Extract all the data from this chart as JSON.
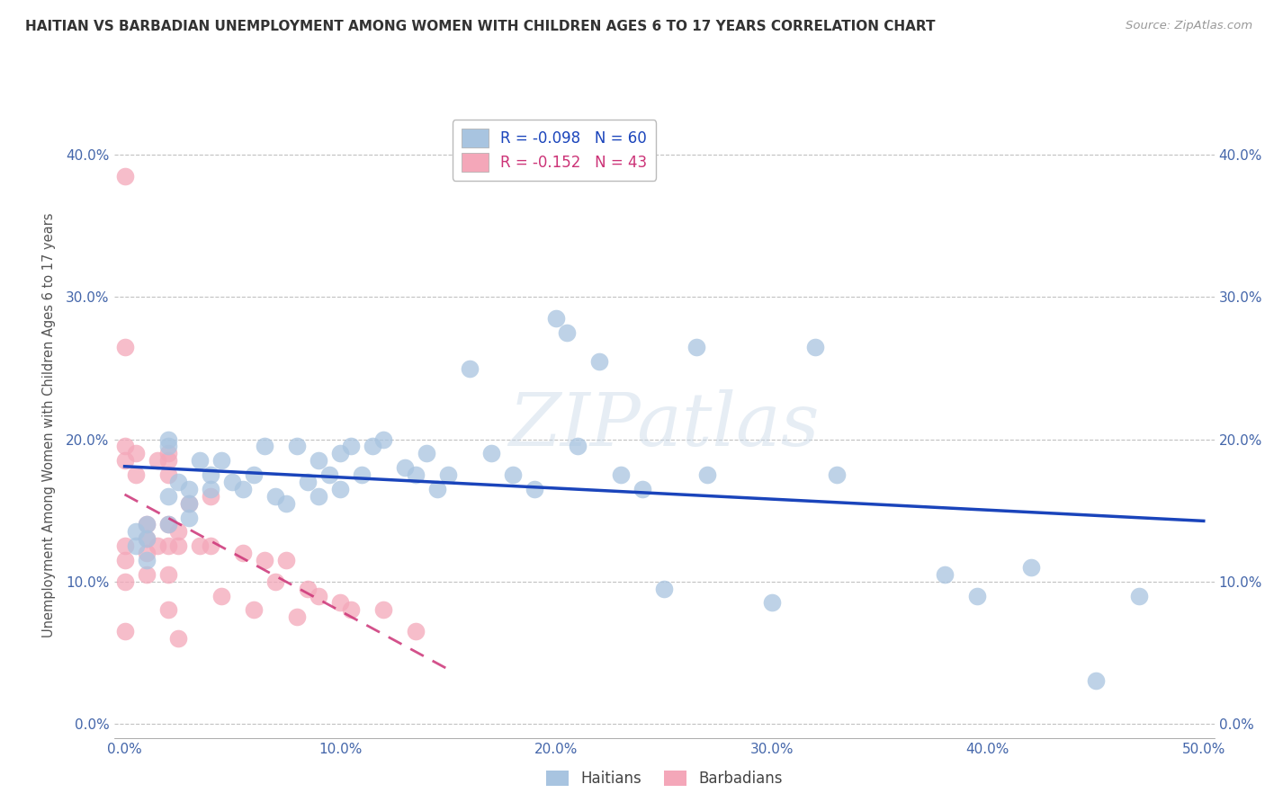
{
  "title": "HAITIAN VS BARBADIAN UNEMPLOYMENT AMONG WOMEN WITH CHILDREN AGES 6 TO 17 YEARS CORRELATION CHART",
  "source": "Source: ZipAtlas.com",
  "ylabel": "Unemployment Among Women with Children Ages 6 to 17 years",
  "xlim": [
    -0.005,
    0.505
  ],
  "ylim": [
    -0.01,
    0.43
  ],
  "x_ticks": [
    0.0,
    0.1,
    0.2,
    0.3,
    0.4,
    0.5
  ],
  "x_tick_labels": [
    "0.0%",
    "10.0%",
    "20.0%",
    "30.0%",
    "40.0%",
    "50.0%"
  ],
  "y_ticks": [
    0.0,
    0.1,
    0.2,
    0.3,
    0.4
  ],
  "y_tick_labels": [
    "0.0%",
    "10.0%",
    "20.0%",
    "30.0%",
    "40.0%"
  ],
  "haitians_R": -0.098,
  "haitians_N": 60,
  "barbadians_R": -0.152,
  "barbadians_N": 43,
  "haitians_color": "#a8c4e0",
  "barbadians_color": "#f4a7b9",
  "haitians_line_color": "#1a44bb",
  "barbadians_line_color": "#cc3377",
  "background_color": "#ffffff",
  "grid_color": "#bbbbbb",
  "watermark_text": "ZIPatlas",
  "haitians_x": [
    0.005,
    0.005,
    0.01,
    0.01,
    0.01,
    0.02,
    0.02,
    0.02,
    0.02,
    0.025,
    0.03,
    0.03,
    0.03,
    0.035,
    0.04,
    0.04,
    0.045,
    0.05,
    0.055,
    0.06,
    0.065,
    0.07,
    0.075,
    0.08,
    0.085,
    0.09,
    0.09,
    0.095,
    0.1,
    0.1,
    0.105,
    0.11,
    0.115,
    0.12,
    0.13,
    0.135,
    0.14,
    0.145,
    0.15,
    0.16,
    0.17,
    0.18,
    0.19,
    0.2,
    0.205,
    0.21,
    0.22,
    0.23,
    0.24,
    0.25,
    0.265,
    0.27,
    0.3,
    0.32,
    0.33,
    0.38,
    0.395,
    0.42,
    0.45,
    0.47
  ],
  "haitians_y": [
    0.135,
    0.125,
    0.14,
    0.13,
    0.115,
    0.2,
    0.195,
    0.16,
    0.14,
    0.17,
    0.165,
    0.155,
    0.145,
    0.185,
    0.175,
    0.165,
    0.185,
    0.17,
    0.165,
    0.175,
    0.195,
    0.16,
    0.155,
    0.195,
    0.17,
    0.185,
    0.16,
    0.175,
    0.19,
    0.165,
    0.195,
    0.175,
    0.195,
    0.2,
    0.18,
    0.175,
    0.19,
    0.165,
    0.175,
    0.25,
    0.19,
    0.175,
    0.165,
    0.285,
    0.275,
    0.195,
    0.255,
    0.175,
    0.165,
    0.095,
    0.265,
    0.175,
    0.085,
    0.265,
    0.175,
    0.105,
    0.09,
    0.11,
    0.03,
    0.09
  ],
  "barbadians_x": [
    0.0,
    0.0,
    0.0,
    0.0,
    0.0,
    0.0,
    0.0,
    0.0,
    0.005,
    0.005,
    0.01,
    0.01,
    0.01,
    0.01,
    0.015,
    0.015,
    0.02,
    0.02,
    0.02,
    0.02,
    0.02,
    0.02,
    0.02,
    0.025,
    0.025,
    0.025,
    0.03,
    0.035,
    0.04,
    0.04,
    0.045,
    0.055,
    0.06,
    0.065,
    0.07,
    0.075,
    0.08,
    0.085,
    0.09,
    0.1,
    0.105,
    0.12,
    0.135
  ],
  "barbadians_y": [
    0.385,
    0.265,
    0.195,
    0.185,
    0.125,
    0.115,
    0.1,
    0.065,
    0.19,
    0.175,
    0.14,
    0.13,
    0.12,
    0.105,
    0.185,
    0.125,
    0.19,
    0.185,
    0.175,
    0.14,
    0.125,
    0.105,
    0.08,
    0.135,
    0.125,
    0.06,
    0.155,
    0.125,
    0.16,
    0.125,
    0.09,
    0.12,
    0.08,
    0.115,
    0.1,
    0.115,
    0.075,
    0.095,
    0.09,
    0.085,
    0.08,
    0.08,
    0.065
  ]
}
